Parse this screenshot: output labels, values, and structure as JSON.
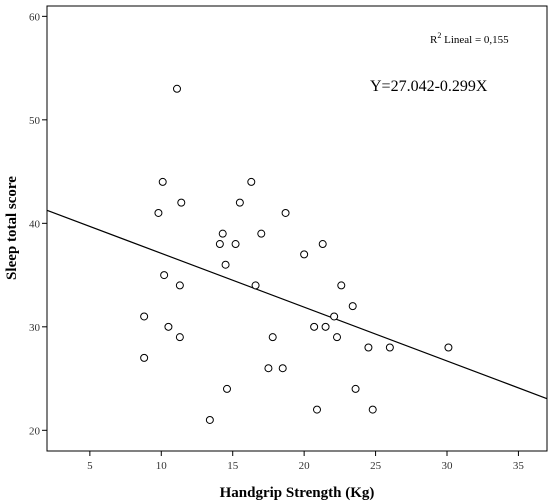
{
  "chart_data": {
    "type": "scatter",
    "title": "",
    "xlabel": "Handgrip Strength (Kg)",
    "ylabel": "Sleep total score",
    "xlim": [
      2,
      37
    ],
    "ylim": [
      18,
      61
    ],
    "xticks": [
      "5",
      "10",
      "15",
      "20",
      "25",
      "30",
      "35"
    ],
    "yticks": [
      "20",
      "30",
      "40",
      "50",
      "60"
    ],
    "grid": false,
    "series": [
      {
        "x": [
          11.1,
          10.1,
          9.8,
          11.4,
          16.3,
          15.5,
          18.7,
          14.3,
          14.1,
          15.2,
          17.0,
          21.3,
          14.5,
          20.0,
          10.2,
          11.3,
          16.6,
          22.6,
          8.8,
          10.5,
          11.3,
          20.7,
          21.5,
          22.1,
          23.4,
          22.3,
          8.8,
          17.8,
          24.5,
          26.0,
          30.1,
          17.5,
          18.5,
          14.6,
          23.6,
          20.9,
          24.8,
          13.4
        ],
        "y": [
          53,
          44,
          41,
          42,
          44,
          42,
          41,
          39,
          38,
          38,
          39,
          38,
          36,
          37,
          35,
          34,
          34,
          34,
          31,
          30,
          29,
          30,
          30,
          31,
          32,
          29,
          27,
          29,
          28,
          28,
          28,
          26,
          26,
          24,
          24,
          22,
          22,
          21
        ]
      }
    ],
    "fit_line": {
      "intercept": 42.3,
      "slope": -0.52
    },
    "annotations": {
      "r2_prefix": "R",
      "r2_sup": "2",
      "r2_text": " Lineal = 0,155",
      "equation": "Y=27.042-0.299X"
    }
  }
}
